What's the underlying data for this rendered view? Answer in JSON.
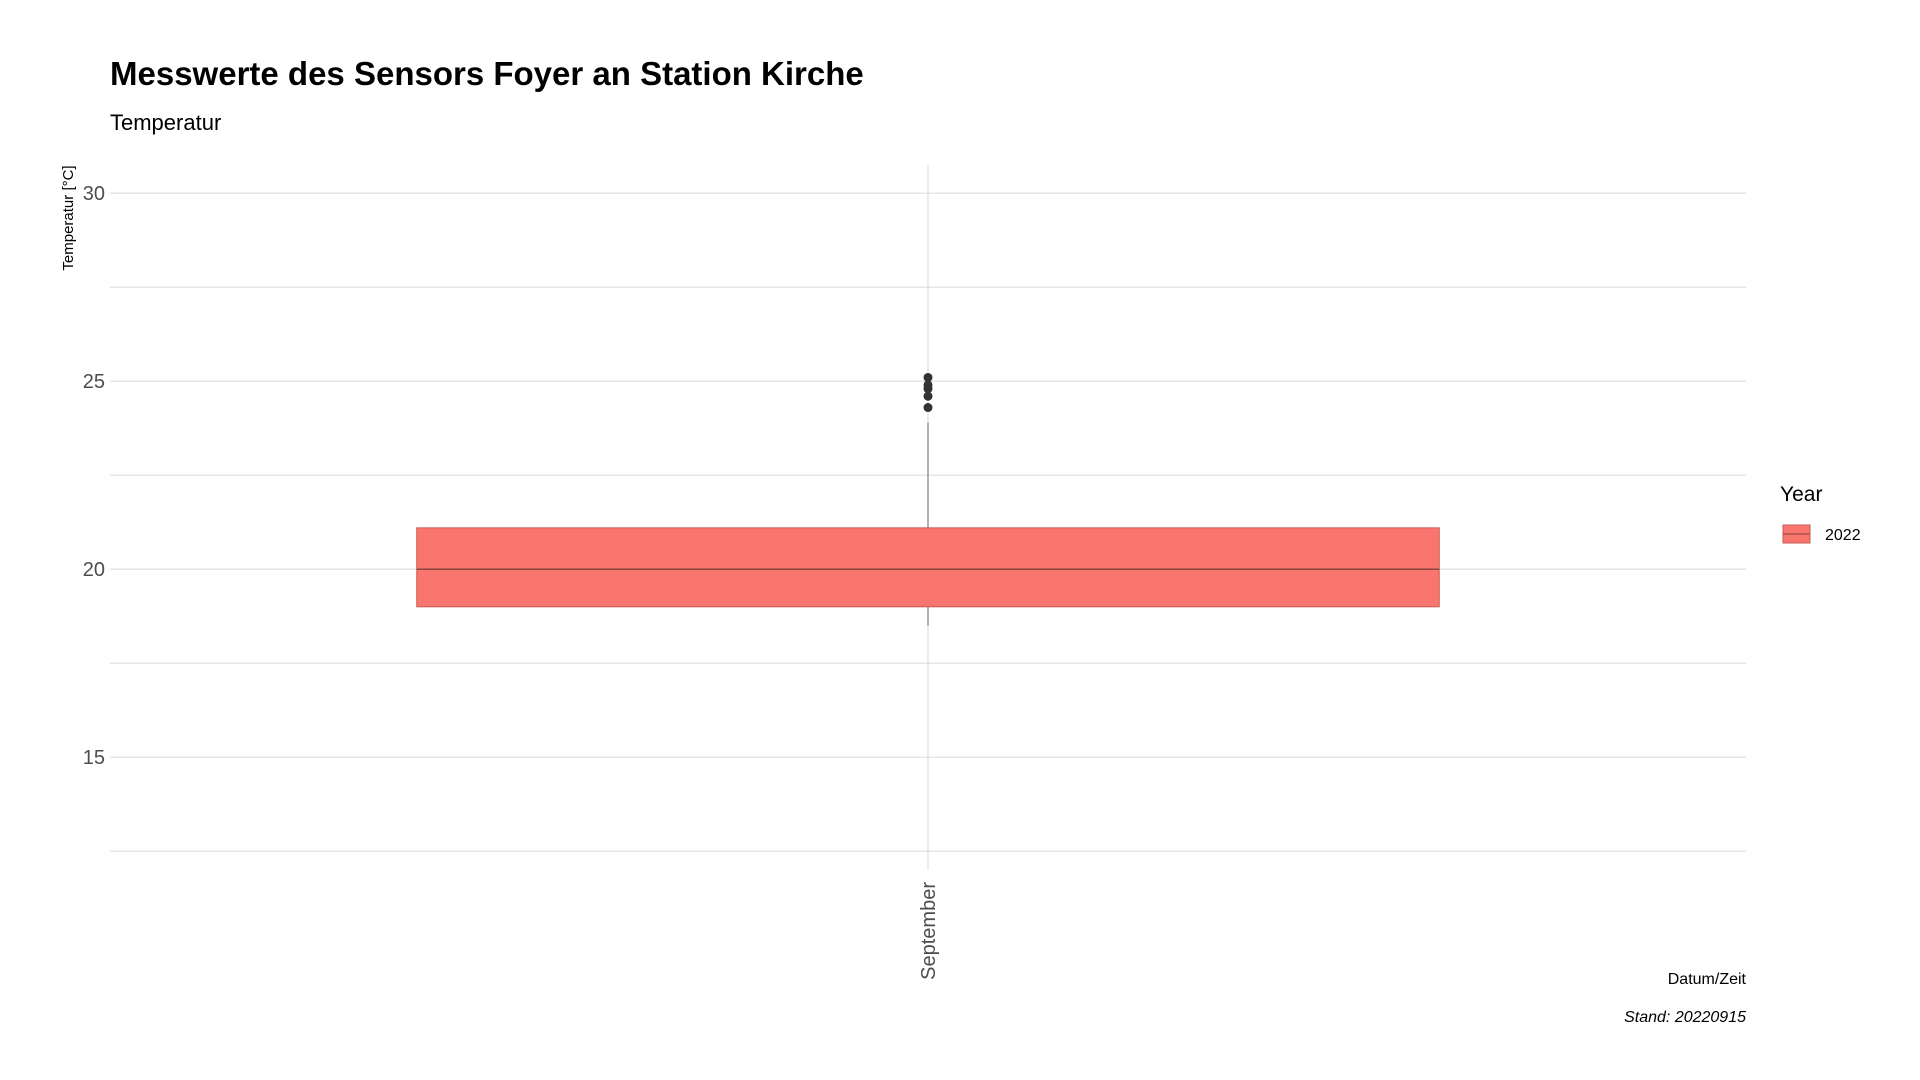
{
  "chart_data": {
    "type": "box",
    "title": "Messwerte des Sensors Foyer an Station Kirche",
    "subtitle": "Temperatur",
    "xlabel": "Datum/Zeit",
    "ylabel": "Temperatur [°C]",
    "caption": "Stand: 20220915",
    "ylim": [
      12.0,
      30.75
    ],
    "yticks": [
      15,
      20,
      25,
      30
    ],
    "ytick_labels": [
      "15",
      "20",
      "25",
      "30"
    ],
    "categories": [
      "September"
    ],
    "grid": true,
    "legend": {
      "title": "Year",
      "position": "right",
      "entries": [
        {
          "label": "2022",
          "color": "#F8766D"
        }
      ]
    },
    "series": [
      {
        "name": "2022",
        "color": "#F8766D",
        "boxes": [
          {
            "category": "September",
            "whisker_low": 18.5,
            "q1": 19.0,
            "median": 20.0,
            "q3": 21.1,
            "whisker_high": 23.9,
            "outliers": [
              24.3,
              24.6,
              24.8,
              24.9,
              25.1
            ]
          }
        ]
      }
    ]
  }
}
